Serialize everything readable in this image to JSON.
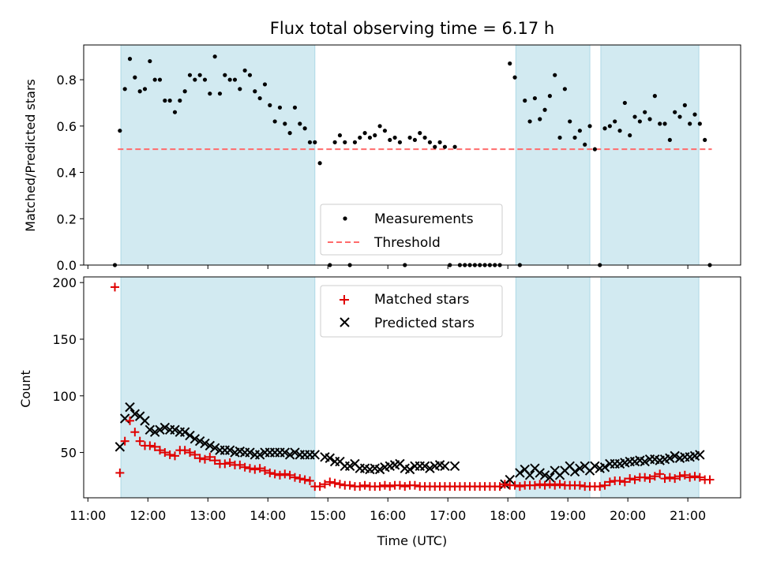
{
  "figure": {
    "title": "Flux total observing time = 6.17 h",
    "xlabel": "Time (UTC)",
    "colors": {
      "shade": "#add8e6",
      "shade_alpha": 0.55,
      "threshold": "#ff6b6b",
      "matched": "#e00000",
      "predicted": "#000000",
      "measurement": "#000000"
    }
  },
  "chart_data": [
    {
      "type": "scatter",
      "ylabel": "Matched/Predicted stars",
      "xlim_hours": [
        10.93,
        21.88
      ],
      "ylim": [
        0,
        0.95
      ],
      "yticks": [
        0.0,
        0.2,
        0.4,
        0.6,
        0.8
      ],
      "yticklabels": [
        "0.0",
        "0.2",
        "0.4",
        "0.6",
        "0.8"
      ],
      "shaded_intervals": [
        [
          "11:33",
          "14:47"
        ],
        [
          "18:08",
          "19:22"
        ],
        [
          "19:33",
          "21:11"
        ]
      ],
      "threshold": 0.5,
      "threshold_range": [
        "11:30",
        "21:24"
      ],
      "legend": {
        "position": "lower center",
        "entries": [
          "Measurements",
          "Threshold"
        ]
      },
      "series": [
        {
          "name": "Measurements",
          "x": [
            "11:27",
            "11:32",
            "11:37",
            "11:42",
            "11:47",
            "11:52",
            "11:57",
            "12:02",
            "12:07",
            "12:12",
            "12:17",
            "12:22",
            "12:27",
            "12:32",
            "12:37",
            "12:42",
            "12:47",
            "12:52",
            "12:57",
            "13:02",
            "13:07",
            "13:12",
            "13:17",
            "13:22",
            "13:27",
            "13:32",
            "13:37",
            "13:42",
            "13:47",
            "13:52",
            "13:57",
            "14:02",
            "14:07",
            "14:12",
            "14:17",
            "14:22",
            "14:27",
            "14:32",
            "14:37",
            "14:42",
            "14:47",
            "14:52",
            "14:57",
            "15:02",
            "15:07",
            "15:12",
            "15:17",
            "15:22",
            "15:27",
            "15:32",
            "15:37",
            "15:42",
            "15:47",
            "15:52",
            "15:57",
            "16:02",
            "16:07",
            "16:12",
            "16:17",
            "16:22",
            "16:27",
            "16:32",
            "16:37",
            "16:42",
            "16:47",
            "16:52",
            "16:57",
            "17:02",
            "17:07",
            "17:12",
            "17:17",
            "17:22",
            "17:27",
            "17:32",
            "17:37",
            "17:42",
            "17:47",
            "17:52",
            "17:57",
            "18:02",
            "18:07",
            "18:12",
            "18:17",
            "18:22",
            "18:27",
            "18:32",
            "18:37",
            "18:42",
            "18:47",
            "18:52",
            "18:57",
            "19:02",
            "19:07",
            "19:12",
            "19:17",
            "19:22",
            "19:27",
            "19:32",
            "19:37",
            "19:42",
            "19:47",
            "19:52",
            "19:57",
            "20:02",
            "20:07",
            "20:12",
            "20:17",
            "20:22",
            "20:27",
            "20:32",
            "20:37",
            "20:42",
            "20:47",
            "20:52",
            "20:57",
            "21:02",
            "21:07",
            "21:12",
            "21:17",
            "21:22"
          ],
          "y": [
            0.0,
            0.58,
            0.76,
            0.89,
            0.81,
            0.75,
            0.76,
            0.88,
            0.8,
            0.8,
            0.71,
            0.71,
            0.66,
            0.71,
            0.75,
            0.82,
            0.8,
            0.82,
            0.8,
            0.74,
            0.9,
            0.74,
            0.82,
            0.8,
            0.8,
            0.76,
            0.84,
            0.82,
            0.75,
            0.72,
            0.78,
            0.69,
            0.62,
            0.68,
            0.61,
            0.57,
            0.68,
            0.61,
            0.59,
            0.53,
            0.53,
            0.44,
            null,
            0.0,
            0.53,
            0.56,
            0.53,
            0.0,
            0.53,
            0.55,
            0.57,
            0.55,
            0.56,
            0.6,
            0.58,
            0.54,
            0.55,
            0.53,
            0.0,
            0.55,
            0.54,
            0.57,
            0.55,
            0.53,
            0.51,
            0.53,
            0.51,
            0.0,
            0.51,
            0.0,
            0.0,
            0.0,
            0.0,
            0.0,
            0.0,
            0.0,
            0.0,
            0.0,
            null,
            0.87,
            0.81,
            0.0,
            0.71,
            0.62,
            0.72,
            0.63,
            0.67,
            0.73,
            0.82,
            0.55,
            0.76,
            0.62,
            0.55,
            0.58,
            0.52,
            0.6,
            0.5,
            0.0,
            0.59,
            0.6,
            0.62,
            0.58,
            0.7,
            0.56,
            0.64,
            0.62,
            0.66,
            0.63,
            0.73,
            0.61,
            0.61,
            0.54,
            0.66,
            0.64,
            0.69,
            0.61,
            0.65,
            0.61,
            0.54,
            0.0
          ]
        }
      ]
    },
    {
      "type": "scatter",
      "ylabel": "Count",
      "xlim_hours": [
        10.93,
        21.88
      ],
      "ylim": [
        10,
        205
      ],
      "yticks": [
        50,
        100,
        150,
        200
      ],
      "yticklabels": [
        "50",
        "100",
        "150",
        "200"
      ],
      "xticklabels": [
        "11:00",
        "12:00",
        "13:00",
        "14:00",
        "15:00",
        "16:00",
        "17:00",
        "18:00",
        "19:00",
        "20:00",
        "21:00"
      ],
      "shaded_intervals": [
        [
          "11:33",
          "14:47"
        ],
        [
          "18:08",
          "19:22"
        ],
        [
          "19:33",
          "21:11"
        ]
      ],
      "legend": {
        "position": "upper center",
        "entries": [
          "Matched stars",
          "Predicted stars"
        ]
      },
      "series": [
        {
          "name": "Matched stars",
          "x": [
            "11:27",
            "11:32",
            "11:37",
            "11:42",
            "11:47",
            "11:52",
            "11:57",
            "12:02",
            "12:07",
            "12:12",
            "12:17",
            "12:22",
            "12:27",
            "12:32",
            "12:37",
            "12:42",
            "12:47",
            "12:52",
            "12:57",
            "13:02",
            "13:07",
            "13:12",
            "13:17",
            "13:22",
            "13:27",
            "13:32",
            "13:37",
            "13:42",
            "13:47",
            "13:52",
            "13:57",
            "14:02",
            "14:07",
            "14:12",
            "14:17",
            "14:22",
            "14:27",
            "14:32",
            "14:37",
            "14:42",
            "14:47",
            "14:52",
            "14:57",
            "15:02",
            "15:07",
            "15:12",
            "15:17",
            "15:22",
            "15:27",
            "15:32",
            "15:37",
            "15:42",
            "15:47",
            "15:52",
            "15:57",
            "16:02",
            "16:07",
            "16:12",
            "16:17",
            "16:22",
            "16:27",
            "16:32",
            "16:37",
            "16:42",
            "16:47",
            "16:52",
            "16:57",
            "17:02",
            "17:07",
            "17:12",
            "17:17",
            "17:22",
            "17:27",
            "17:32",
            "17:37",
            "17:42",
            "17:47",
            "17:52",
            "17:57",
            "18:02",
            "18:07",
            "18:12",
            "18:17",
            "18:22",
            "18:27",
            "18:32",
            "18:37",
            "18:42",
            "18:47",
            "18:52",
            "18:57",
            "19:02",
            "19:07",
            "19:12",
            "19:17",
            "19:22",
            "19:27",
            "19:32",
            "19:37",
            "19:42",
            "19:47",
            "19:52",
            "19:57",
            "20:02",
            "20:07",
            "20:12",
            "20:17",
            "20:22",
            "20:27",
            "20:32",
            "20:37",
            "20:42",
            "20:47",
            "20:52",
            "20:57",
            "21:02",
            "21:07",
            "21:12",
            "21:17",
            "21:22"
          ],
          "y": [
            196,
            32,
            60,
            78,
            68,
            60,
            56,
            56,
            55,
            52,
            50,
            48,
            47,
            52,
            52,
            50,
            48,
            45,
            44,
            46,
            43,
            40,
            40,
            41,
            39,
            39,
            37,
            36,
            35,
            36,
            34,
            32,
            31,
            30,
            31,
            30,
            28,
            27,
            26,
            25,
            20,
            20,
            22,
            24,
            23,
            22,
            21,
            21,
            20,
            20,
            21,
            20,
            20,
            20,
            21,
            20,
            21,
            21,
            20,
            21,
            21,
            20,
            20,
            20,
            20,
            20,
            20,
            20,
            20,
            20,
            20,
            20,
            20,
            20,
            20,
            20,
            20,
            20,
            22,
            21,
            21,
            20,
            21,
            21,
            21,
            22,
            21,
            22,
            21,
            22,
            21,
            21,
            21,
            21,
            20,
            20,
            20,
            20,
            21,
            24,
            25,
            25,
            24,
            27,
            26,
            28,
            28,
            27,
            29,
            31,
            27,
            28,
            27,
            29,
            30,
            28,
            29,
            28,
            26,
            26
          ]
        },
        {
          "name": "Predicted stars",
          "x": [
            "11:32",
            "11:37",
            "11:42",
            "11:47",
            "11:52",
            "11:57",
            "12:02",
            "12:07",
            "12:12",
            "12:17",
            "12:22",
            "12:27",
            "12:32",
            "12:37",
            "12:42",
            "12:47",
            "12:52",
            "12:57",
            "13:02",
            "13:07",
            "13:12",
            "13:17",
            "13:22",
            "13:27",
            "13:32",
            "13:37",
            "13:42",
            "13:47",
            "13:52",
            "13:57",
            "14:02",
            "14:07",
            "14:12",
            "14:17",
            "14:22",
            "14:27",
            "14:32",
            "14:37",
            "14:42",
            "14:47",
            "14:57",
            "15:02",
            "15:07",
            "15:12",
            "15:17",
            "15:22",
            "15:27",
            "15:32",
            "15:37",
            "15:42",
            "15:47",
            "15:52",
            "15:57",
            "16:02",
            "16:07",
            "16:12",
            "16:17",
            "16:22",
            "16:27",
            "16:32",
            "16:37",
            "16:42",
            "16:47",
            "16:52",
            "16:57",
            "17:07",
            "17:57",
            "18:02",
            "18:12",
            "18:17",
            "18:22",
            "18:27",
            "18:32",
            "18:37",
            "18:42",
            "18:47",
            "18:52",
            "18:57",
            "19:02",
            "19:07",
            "19:12",
            "19:17",
            "19:22",
            "19:27",
            "19:32",
            "19:37",
            "19:42",
            "19:47",
            "19:52",
            "19:57",
            "20:02",
            "20:07",
            "20:12",
            "20:17",
            "20:22",
            "20:27",
            "20:32",
            "20:37",
            "20:42",
            "20:47",
            "20:52",
            "20:57",
            "21:02",
            "21:07",
            "21:12"
          ],
          "y": [
            55,
            80,
            90,
            84,
            82,
            78,
            70,
            68,
            70,
            72,
            70,
            70,
            68,
            68,
            65,
            62,
            60,
            58,
            56,
            54,
            52,
            52,
            52,
            50,
            51,
            50,
            50,
            48,
            48,
            50,
            50,
            50,
            50,
            50,
            48,
            50,
            48,
            48,
            48,
            48,
            46,
            45,
            42,
            42,
            38,
            38,
            40,
            36,
            36,
            35,
            36,
            35,
            37,
            38,
            39,
            40,
            36,
            35,
            38,
            38,
            38,
            36,
            38,
            39,
            38,
            38,
            22,
            26,
            32,
            35,
            30,
            36,
            32,
            30,
            28,
            34,
            30,
            34,
            38,
            33,
            36,
            38,
            34,
            38,
            36,
            37,
            40,
            40,
            40,
            41,
            42,
            42,
            43,
            42,
            44,
            44,
            43,
            44,
            45,
            47,
            45,
            46,
            46,
            47,
            48
          ]
        }
      ]
    }
  ]
}
